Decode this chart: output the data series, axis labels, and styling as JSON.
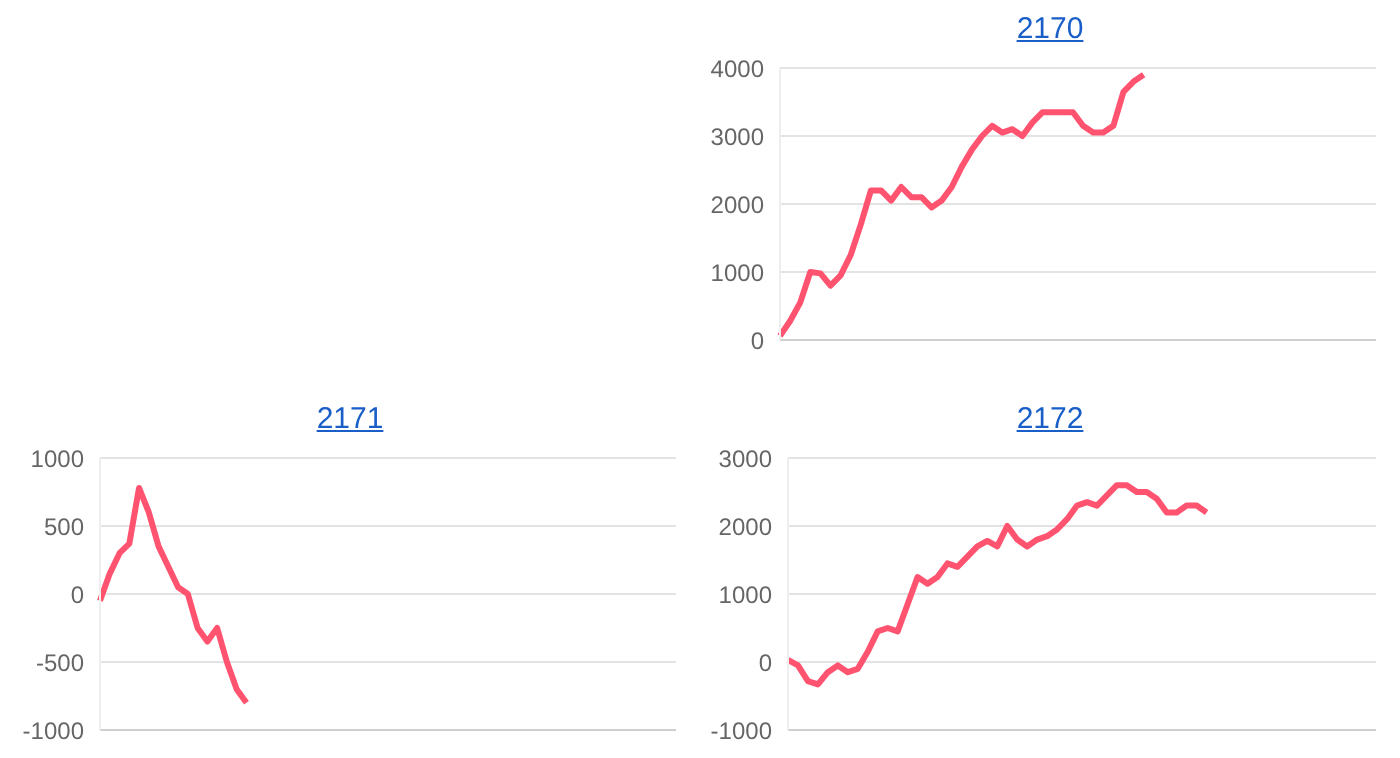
{
  "chart_data": [
    {
      "type": "line",
      "title": "2170",
      "categories": [
        null,
        null,
        null,
        null,
        null,
        null,
        null,
        null,
        null,
        null,
        null,
        null,
        null,
        null,
        null,
        null,
        null,
        null,
        null,
        null,
        null,
        null,
        null,
        null,
        null,
        null,
        null,
        null,
        null,
        null,
        null,
        null,
        null,
        null,
        null,
        null,
        null,
        null,
        null,
        null,
        null,
        null,
        null,
        null,
        null,
        null,
        null,
        null,
        null,
        null,
        null,
        null,
        null,
        null,
        null,
        null,
        null,
        null,
        null,
        null
      ],
      "series": [
        {
          "color": "#ff5370",
          "values": [
            60,
            280,
            550,
            1000,
            980,
            800,
            950,
            1250,
            1700,
            2200,
            2200,
            2050,
            2250,
            2100,
            2100,
            1950,
            2050,
            2250,
            2550,
            2800,
            3000,
            3150,
            3050,
            3100,
            3000,
            3200,
            3350,
            3350,
            3350,
            3350,
            3150,
            3050,
            3050,
            3150,
            3650,
            3800,
            3900,
            null,
            null,
            null,
            null,
            null,
            null,
            null,
            null,
            null,
            null,
            null,
            null,
            null,
            null,
            null,
            null,
            null,
            null,
            null,
            null,
            null,
            null,
            null
          ]
        }
      ],
      "ylim": [
        0,
        4000
      ],
      "yticks": [
        0,
        1000,
        2000,
        3000,
        4000
      ],
      "grid": "y",
      "tick_labels": "y"
    },
    {
      "type": "line",
      "title": "2171",
      "categories": [
        null,
        null,
        null,
        null,
        null,
        null,
        null,
        null,
        null,
        null,
        null,
        null,
        null,
        null,
        null,
        null,
        null,
        null,
        null,
        null,
        null,
        null,
        null,
        null,
        null,
        null,
        null,
        null,
        null,
        null,
        null,
        null,
        null,
        null,
        null,
        null,
        null,
        null,
        null,
        null,
        null,
        null,
        null,
        null,
        null,
        null,
        null,
        null,
        null,
        null,
        null,
        null,
        null,
        null,
        null,
        null,
        null,
        null,
        null,
        null
      ],
      "series": [
        {
          "color": "#ff5370",
          "values": [
            -50,
            150,
            300,
            370,
            780,
            600,
            350,
            200,
            50,
            0,
            -250,
            -350,
            -250,
            -500,
            -700,
            -800,
            null,
            null,
            null,
            null,
            null,
            null,
            null,
            null,
            null,
            null,
            null,
            null,
            null,
            null,
            null,
            null,
            null,
            null,
            null,
            null,
            null,
            null,
            null,
            null,
            null,
            null,
            null,
            null,
            null,
            null,
            null,
            null,
            null,
            null,
            null,
            null,
            null,
            null,
            null,
            null,
            null,
            null,
            null,
            null
          ]
        }
      ],
      "ylim": [
        -1000,
        1000
      ],
      "yticks": [
        -1000,
        -500,
        0,
        500,
        1000
      ],
      "grid": "y",
      "tick_labels": "y"
    },
    {
      "type": "line",
      "title": "2172",
      "categories": [
        null,
        null,
        null,
        null,
        null,
        null,
        null,
        null,
        null,
        null,
        null,
        null,
        null,
        null,
        null,
        null,
        null,
        null,
        null,
        null,
        null,
        null,
        null,
        null,
        null,
        null,
        null,
        null,
        null,
        null,
        null,
        null,
        null,
        null,
        null,
        null,
        null,
        null,
        null,
        null,
        null,
        null,
        null,
        null,
        null,
        null,
        null,
        null,
        null,
        null,
        null,
        null,
        null,
        null,
        null,
        null,
        null,
        null,
        null,
        null
      ],
      "series": [
        {
          "color": "#ff5370",
          "values": [
            30,
            -50,
            -280,
            -330,
            -150,
            -50,
            -150,
            -100,
            150,
            450,
            500,
            450,
            850,
            1250,
            1150,
            1250,
            1450,
            1400,
            1550,
            1700,
            1780,
            1700,
            2000,
            1800,
            1700,
            1800,
            1850,
            1950,
            2100,
            2300,
            2350,
            2300,
            2450,
            2600,
            2600,
            2500,
            2500,
            2400,
            2200,
            2200,
            2300,
            2300,
            2200,
            null,
            null,
            null,
            null,
            null,
            null,
            null,
            null,
            null,
            null,
            null,
            null,
            null,
            null,
            null,
            null,
            null
          ]
        }
      ],
      "ylim": [
        -1000,
        3000
      ],
      "yticks": [
        -1000,
        0,
        1000,
        2000,
        3000
      ],
      "grid": "y",
      "tick_labels": "y"
    }
  ]
}
